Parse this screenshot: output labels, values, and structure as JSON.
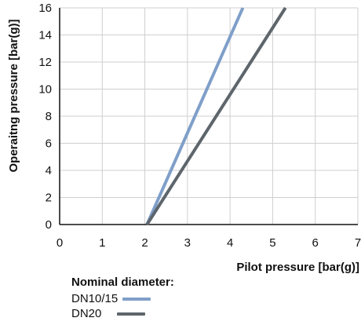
{
  "chart_data": {
    "type": "line",
    "title": "",
    "xlabel": "Pilot pressure [bar(g)]",
    "ylabel": "Operaitng pressure [bar(g)]",
    "xlim": [
      0,
      7
    ],
    "ylim": [
      0,
      16
    ],
    "xticks": [
      0,
      1,
      2,
      3,
      4,
      5,
      6,
      7
    ],
    "yticks": [
      0,
      2,
      4,
      6,
      8,
      10,
      12,
      14,
      16
    ],
    "grid": true,
    "legend_title": "Nominal diameter:",
    "legend_position": "bottom-left",
    "series": [
      {
        "name": "DN10/15",
        "color": "#7f9fc9",
        "x": [
          2.05,
          4.3
        ],
        "y": [
          0,
          16
        ]
      },
      {
        "name": "DN20",
        "color": "#5e666c",
        "x": [
          2.05,
          5.3
        ],
        "y": [
          0,
          16
        ]
      }
    ]
  }
}
